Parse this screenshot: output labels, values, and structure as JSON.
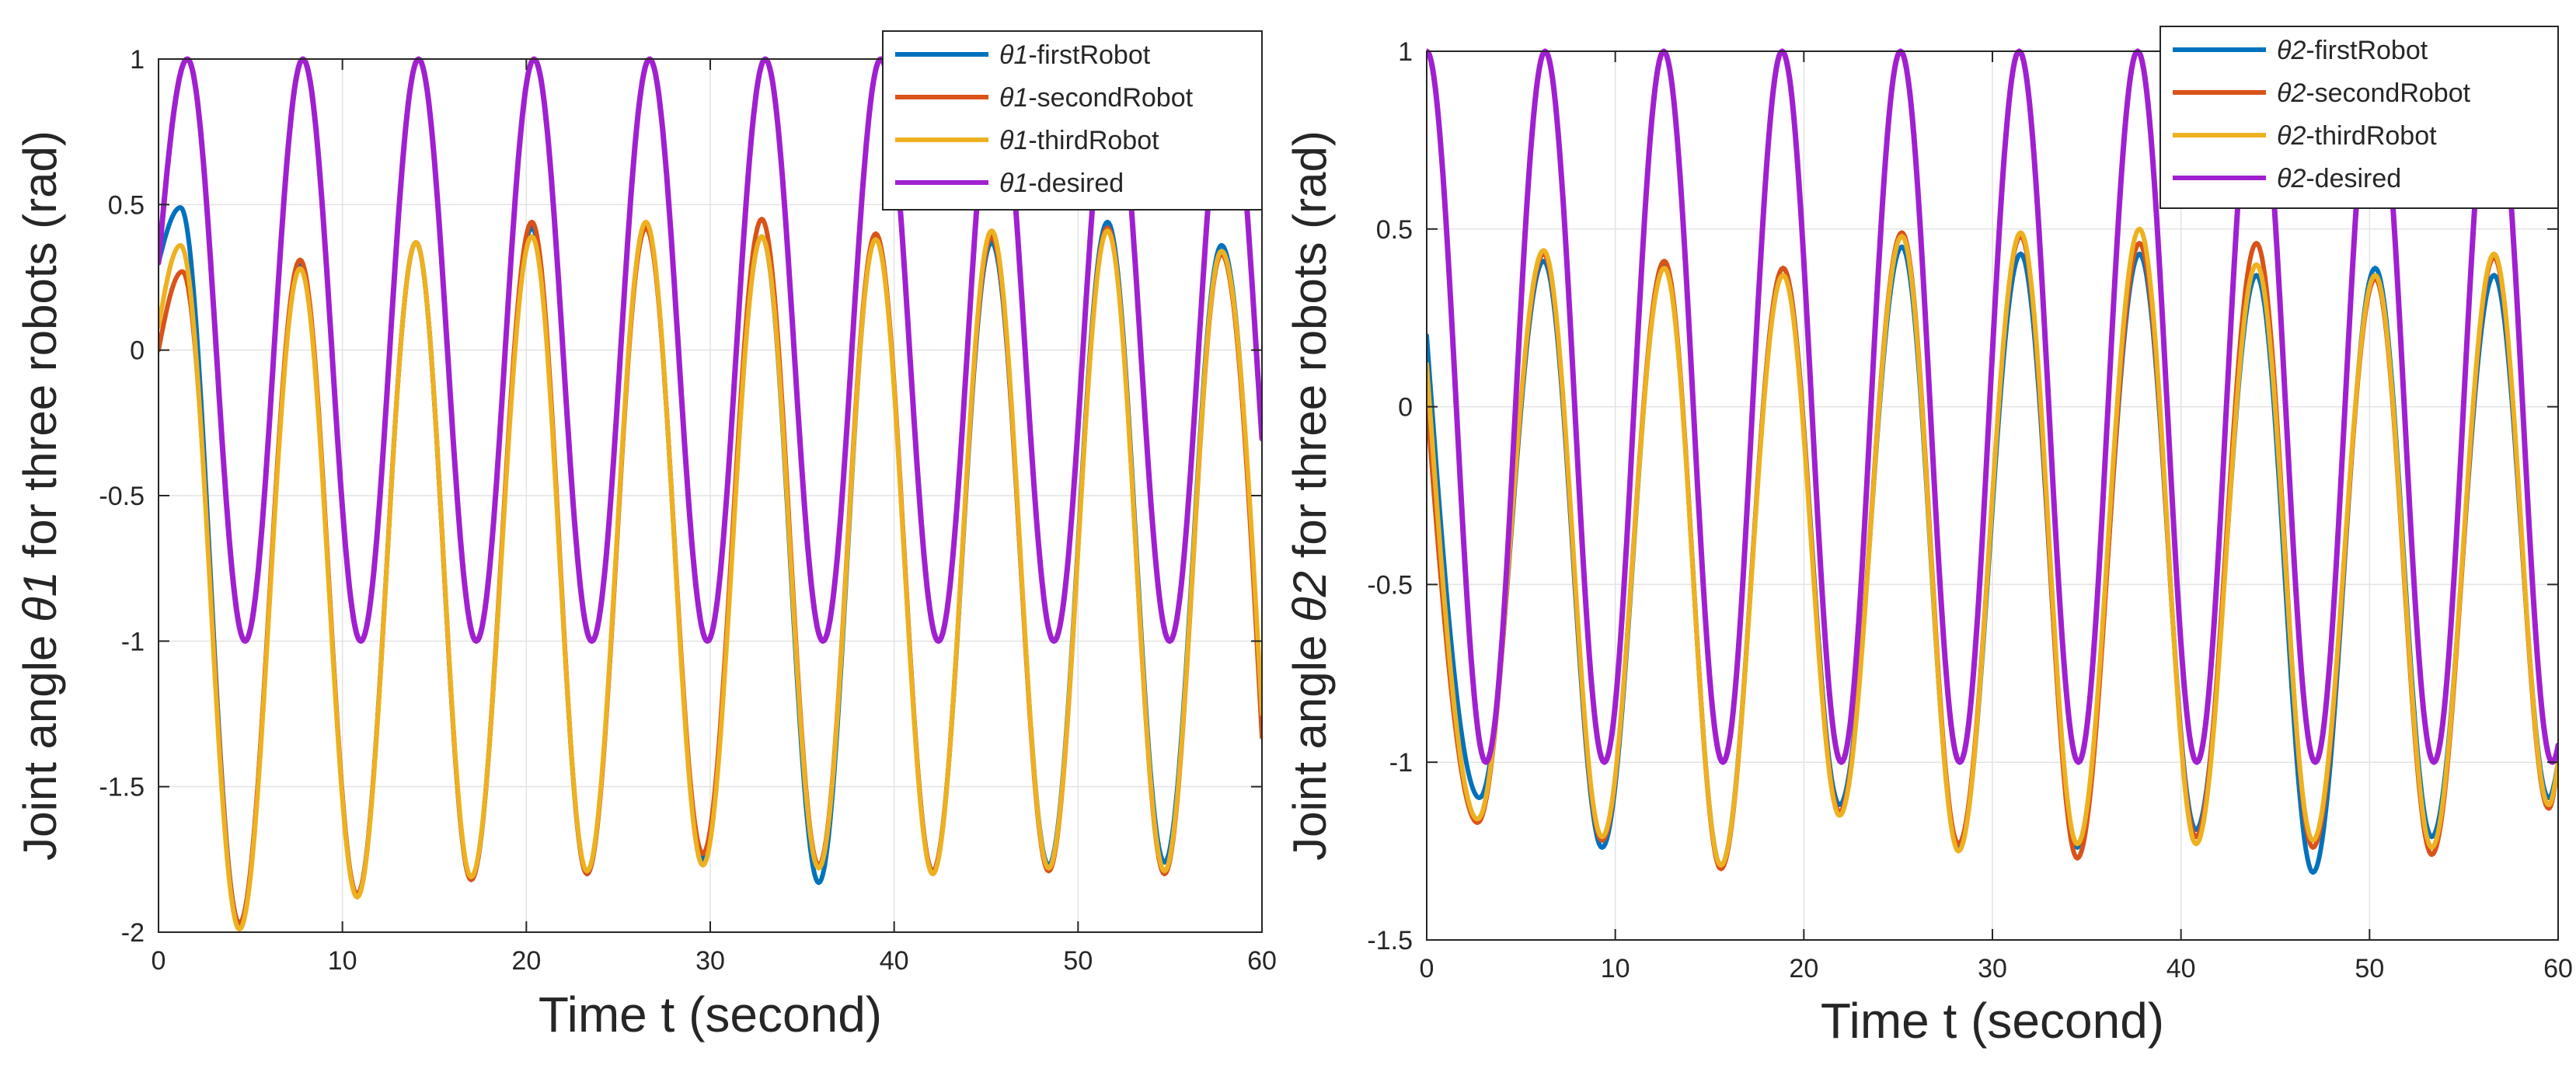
{
  "chart_data": [
    {
      "type": "line",
      "id": "theta1",
      "xlabel": "Time t (second)",
      "ylabel_prefix": "Joint angle ",
      "ylabel_symbol": "θ1",
      "ylabel_suffix": " for three robots (rad)",
      "xlim": [
        0,
        60
      ],
      "ylim": [
        -2,
        1
      ],
      "xticks": [
        0,
        10,
        20,
        30,
        40,
        50,
        60
      ],
      "xtick_labels": [
        "0",
        "10",
        "20",
        "30",
        "40",
        "50",
        "60"
      ],
      "yticks": [
        -2,
        -1.5,
        -1,
        -0.5,
        0,
        0.5,
        1
      ],
      "ytick_labels": [
        "-2",
        "-1.5",
        "-1",
        "-0.5",
        "0",
        "0.5",
        "1"
      ],
      "grid": true,
      "legend_position": "top-right",
      "series": [
        {
          "name": "θ1-firstRobot",
          "color": "#0072BD",
          "offset": -0.7,
          "amplitude": 1.12,
          "period": 6.2,
          "phase": 1.35,
          "start": 0.3,
          "peak_points": [
            {
              "x": 1.2,
              "y": 0.49
            },
            {
              "x": 4.4,
              "y": -1.97
            },
            {
              "x": 7.7,
              "y": 0.3
            },
            {
              "x": 10.8,
              "y": -1.87
            },
            {
              "x": 14.0,
              "y": 0.37
            },
            {
              "x": 17.0,
              "y": -1.82
            },
            {
              "x": 20.3,
              "y": 0.42
            },
            {
              "x": 23.3,
              "y": -1.8
            },
            {
              "x": 26.5,
              "y": 0.43
            },
            {
              "x": 29.6,
              "y": -1.75
            },
            {
              "x": 32.8,
              "y": 0.39
            },
            {
              "x": 35.9,
              "y": -1.83
            },
            {
              "x": 39.0,
              "y": 0.39
            },
            {
              "x": 42.1,
              "y": -1.79
            },
            {
              "x": 45.3,
              "y": 0.37
            },
            {
              "x": 48.4,
              "y": -1.77
            },
            {
              "x": 51.6,
              "y": 0.44
            },
            {
              "x": 54.7,
              "y": -1.76
            },
            {
              "x": 57.8,
              "y": 0.36
            }
          ],
          "end": -1.3
        },
        {
          "name": "θ1-secondRobot",
          "color": "#D95319",
          "offset": -0.7,
          "amplitude": 1.12,
          "period": 6.2,
          "phase": 1.35,
          "start": 0.0,
          "peak_points": [
            {
              "x": 1.3,
              "y": 0.27
            },
            {
              "x": 4.4,
              "y": -1.97
            },
            {
              "x": 7.7,
              "y": 0.31
            },
            {
              "x": 10.8,
              "y": -1.87
            },
            {
              "x": 14.0,
              "y": 0.37
            },
            {
              "x": 17.0,
              "y": -1.82
            },
            {
              "x": 20.3,
              "y": 0.44
            },
            {
              "x": 23.3,
              "y": -1.8
            },
            {
              "x": 26.5,
              "y": 0.42
            },
            {
              "x": 29.6,
              "y": -1.73
            },
            {
              "x": 32.8,
              "y": 0.45
            },
            {
              "x": 35.9,
              "y": -1.77
            },
            {
              "x": 39.0,
              "y": 0.4
            },
            {
              "x": 42.1,
              "y": -1.79
            },
            {
              "x": 45.3,
              "y": 0.39
            },
            {
              "x": 48.4,
              "y": -1.79
            },
            {
              "x": 51.6,
              "y": 0.42
            },
            {
              "x": 54.7,
              "y": -1.8
            },
            {
              "x": 57.8,
              "y": 0.33
            }
          ],
          "end": -1.33
        },
        {
          "name": "θ1-thirdRobot",
          "color": "#EDB120",
          "offset": -0.7,
          "amplitude": 1.12,
          "period": 6.2,
          "phase": 1.35,
          "start": 0.08,
          "peak_points": [
            {
              "x": 1.2,
              "y": 0.36
            },
            {
              "x": 4.4,
              "y": -1.99
            },
            {
              "x": 7.7,
              "y": 0.28
            },
            {
              "x": 10.8,
              "y": -1.88
            },
            {
              "x": 14.0,
              "y": 0.37
            },
            {
              "x": 17.0,
              "y": -1.81
            },
            {
              "x": 20.3,
              "y": 0.39
            },
            {
              "x": 23.3,
              "y": -1.79
            },
            {
              "x": 26.5,
              "y": 0.44
            },
            {
              "x": 29.6,
              "y": -1.77
            },
            {
              "x": 32.8,
              "y": 0.39
            },
            {
              "x": 35.9,
              "y": -1.78
            },
            {
              "x": 39.0,
              "y": 0.38
            },
            {
              "x": 42.1,
              "y": -1.8
            },
            {
              "x": 45.3,
              "y": 0.41
            },
            {
              "x": 48.4,
              "y": -1.78
            },
            {
              "x": 51.6,
              "y": 0.41
            },
            {
              "x": 54.7,
              "y": -1.79
            },
            {
              "x": 57.8,
              "y": 0.34
            }
          ],
          "end": -1.25
        },
        {
          "name": "θ1-desired",
          "color": "#A020D0",
          "desired": true,
          "offset": 0,
          "amplitude": 1,
          "period": 6.2832,
          "phase": 1.5708,
          "x_start": 0,
          "y_start": 0.3,
          "peaks": [
            1.57,
            7.85,
            14.14,
            20.42,
            26.7,
            32.99,
            39.27,
            45.55,
            51.84,
            58.12
          ],
          "troughs": [
            4.71,
            11.0,
            17.28,
            23.56,
            29.85,
            36.13,
            42.41,
            48.69,
            54.98
          ]
        }
      ]
    },
    {
      "type": "line",
      "id": "theta2",
      "xlabel": "Time t (second)",
      "ylabel_prefix": "Joint angle ",
      "ylabel_symbol": "θ2",
      "ylabel_suffix": " for three robots (rad)",
      "xlim": [
        0,
        60
      ],
      "ylim": [
        -1.5,
        1
      ],
      "xticks": [
        0,
        10,
        20,
        30,
        40,
        50,
        60
      ],
      "xtick_labels": [
        "0",
        "10",
        "20",
        "30",
        "40",
        "50",
        "60"
      ],
      "yticks": [
        -1.5,
        -1,
        -0.5,
        0,
        0.5,
        1
      ],
      "ytick_labels": [
        "-1.5",
        "-1",
        "-0.5",
        "0",
        "0.5",
        "1"
      ],
      "grid": true,
      "legend_position": "top-right",
      "series": [
        {
          "name": "θ2-firstRobot",
          "color": "#0072BD",
          "start": 0.2,
          "peak_points": [
            {
              "x": 2.8,
              "y": -1.1
            },
            {
              "x": 6.2,
              "y": 0.41
            },
            {
              "x": 9.3,
              "y": -1.24
            },
            {
              "x": 12.6,
              "y": 0.4
            },
            {
              "x": 15.6,
              "y": -1.29
            },
            {
              "x": 18.9,
              "y": 0.39
            },
            {
              "x": 21.9,
              "y": -1.12
            },
            {
              "x": 25.2,
              "y": 0.45
            },
            {
              "x": 28.2,
              "y": -1.24
            },
            {
              "x": 31.5,
              "y": 0.43
            },
            {
              "x": 34.5,
              "y": -1.24
            },
            {
              "x": 37.8,
              "y": 0.43
            },
            {
              "x": 40.8,
              "y": -1.19
            },
            {
              "x": 44.0,
              "y": 0.37
            },
            {
              "x": 47.0,
              "y": -1.31
            },
            {
              "x": 50.3,
              "y": 0.39
            },
            {
              "x": 53.3,
              "y": -1.21
            },
            {
              "x": 56.6,
              "y": 0.37
            },
            {
              "x": 59.5,
              "y": -1.1
            }
          ],
          "end": -1.0
        },
        {
          "name": "θ2-secondRobot",
          "color": "#D95319",
          "start": 0.02,
          "peak_points": [
            {
              "x": 2.7,
              "y": -1.17
            },
            {
              "x": 6.2,
              "y": 0.43
            },
            {
              "x": 9.3,
              "y": -1.22
            },
            {
              "x": 12.6,
              "y": 0.41
            },
            {
              "x": 15.6,
              "y": -1.3
            },
            {
              "x": 18.9,
              "y": 0.39
            },
            {
              "x": 21.9,
              "y": -1.14
            },
            {
              "x": 25.2,
              "y": 0.49
            },
            {
              "x": 28.2,
              "y": -1.23
            },
            {
              "x": 31.5,
              "y": 0.48
            },
            {
              "x": 34.5,
              "y": -1.27
            },
            {
              "x": 37.8,
              "y": 0.46
            },
            {
              "x": 40.8,
              "y": -1.21
            },
            {
              "x": 44.0,
              "y": 0.46
            },
            {
              "x": 47.0,
              "y": -1.24
            },
            {
              "x": 50.3,
              "y": 0.36
            },
            {
              "x": 53.3,
              "y": -1.26
            },
            {
              "x": 56.6,
              "y": 0.42
            },
            {
              "x": 59.5,
              "y": -1.13
            }
          ],
          "end": -1.0
        },
        {
          "name": "θ2-thirdRobot",
          "color": "#EDB120",
          "start": 0.12,
          "peak_points": [
            {
              "x": 2.7,
              "y": -1.16
            },
            {
              "x": 6.2,
              "y": 0.44
            },
            {
              "x": 9.3,
              "y": -1.21
            },
            {
              "x": 12.6,
              "y": 0.39
            },
            {
              "x": 15.6,
              "y": -1.29
            },
            {
              "x": 18.9,
              "y": 0.37
            },
            {
              "x": 21.9,
              "y": -1.15
            },
            {
              "x": 25.2,
              "y": 0.48
            },
            {
              "x": 28.2,
              "y": -1.25
            },
            {
              "x": 31.5,
              "y": 0.49
            },
            {
              "x": 34.5,
              "y": -1.23
            },
            {
              "x": 37.8,
              "y": 0.5
            },
            {
              "x": 40.8,
              "y": -1.23
            },
            {
              "x": 44.0,
              "y": 0.4
            },
            {
              "x": 47.0,
              "y": -1.22
            },
            {
              "x": 50.3,
              "y": 0.37
            },
            {
              "x": 53.3,
              "y": -1.24
            },
            {
              "x": 56.6,
              "y": 0.43
            },
            {
              "x": 59.5,
              "y": -1.12
            }
          ],
          "end": -1.0
        },
        {
          "name": "θ2-desired",
          "color": "#A020D0",
          "desired": true,
          "x_start": 0,
          "y_start": 1.0,
          "peaks": [
            0,
            6.28,
            12.57,
            18.85,
            25.13,
            31.42,
            37.7,
            43.98,
            50.27,
            56.55
          ],
          "troughs": [
            3.14,
            9.42,
            15.71,
            21.99,
            28.27,
            34.56,
            40.84,
            47.12,
            53.41,
            59.69
          ]
        }
      ]
    }
  ]
}
